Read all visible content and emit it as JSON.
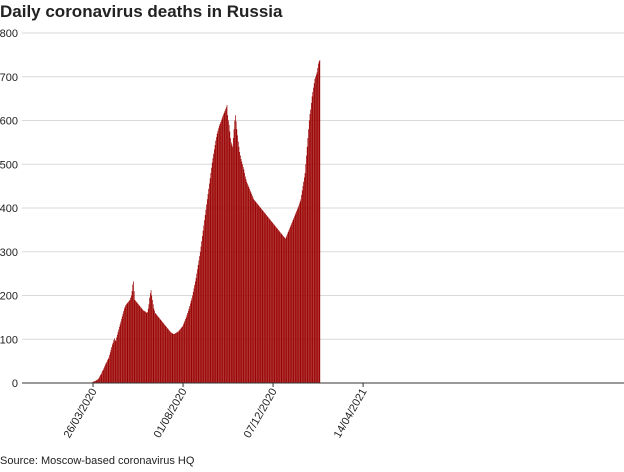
{
  "title": "Daily coronavirus deaths in Russia",
  "source": "Source: Moscow-based coronavirus HQ",
  "chart_data": {
    "type": "bar",
    "title": "Daily coronavirus deaths in Russia",
    "xlabel": "",
    "ylabel": "",
    "ylim": [
      0,
      800
    ],
    "yticks": [
      0,
      100,
      200,
      300,
      400,
      500,
      600,
      700,
      800
    ],
    "x_tick_labels": [
      "26/03/2020",
      "01/08/2020",
      "07/12/2020",
      "14/04/2021"
    ],
    "x_tick_dates": [
      "2020-03-26",
      "2020-08-01",
      "2020-12-07",
      "2021-04-14"
    ],
    "x_range": [
      "2019-12-16",
      "2022-04-20"
    ],
    "grid": true,
    "bar_color": "#990000",
    "series": [
      {
        "start_date": "2020-03-19",
        "values": [
          0,
          0,
          0,
          0,
          0,
          1,
          2,
          3,
          4,
          4,
          5,
          6,
          7,
          8,
          9,
          12,
          15,
          18,
          20,
          24,
          28,
          30,
          34,
          38,
          42,
          45,
          48,
          52,
          55,
          58,
          64,
          70,
          76,
          82,
          88,
          92,
          98,
          102,
          98,
          96,
          104,
          110,
          116,
          122,
          128,
          134,
          140,
          146,
          152,
          158,
          164,
          170,
          174,
          178,
          180,
          182,
          184,
          186,
          188,
          190,
          195,
          200,
          210,
          225,
          232,
          210,
          190,
          188,
          186,
          184,
          182,
          180,
          178,
          176,
          174,
          172,
          170,
          168,
          166,
          165,
          164,
          163,
          162,
          160,
          162,
          170,
          180,
          195,
          205,
          212,
          200,
          190,
          180,
          170,
          165,
          160,
          158,
          156,
          154,
          152,
          150,
          148,
          146,
          144,
          142,
          140,
          138,
          136,
          134,
          132,
          130,
          128,
          126,
          124,
          122,
          120,
          118,
          116,
          115,
          114,
          113,
          112,
          112,
          113,
          114,
          115,
          116,
          117,
          118,
          120,
          122,
          124,
          126,
          128,
          130,
          134,
          138,
          142,
          146,
          150,
          155,
          160,
          165,
          170,
          176,
          182,
          188,
          194,
          200,
          208,
          216,
          224,
          232,
          240,
          250,
          260,
          270,
          280,
          290,
          300,
          312,
          324,
          336,
          348,
          360,
          372,
          384,
          396,
          408,
          420,
          432,
          444,
          456,
          468,
          480,
          492,
          504,
          514,
          524,
          534,
          544,
          554,
          562,
          570,
          576,
          582,
          588,
          592,
          596,
          600,
          605,
          610,
          614,
          618,
          622,
          626,
          630,
          635,
          612,
          600,
          590,
          575,
          560,
          550,
          545,
          540,
          560,
          580,
          600,
          612,
          598,
          580,
          566,
          552,
          540,
          528,
          520,
          512,
          506,
          500,
          494,
          488,
          480,
          472,
          466,
          460,
          456,
          452,
          448,
          444,
          440,
          436,
          432,
          428,
          424,
          420,
          418,
          416,
          414,
          412,
          410,
          408,
          406,
          404,
          402,
          400,
          398,
          396,
          394,
          392,
          390,
          388,
          386,
          384,
          382,
          380,
          378,
          376,
          374,
          372,
          370,
          368,
          366,
          364,
          362,
          360,
          358,
          356,
          354,
          352,
          350,
          348,
          346,
          344,
          342,
          340,
          338,
          336,
          334,
          332,
          330,
          333,
          337,
          341,
          345,
          349,
          353,
          357,
          361,
          365,
          369,
          373,
          377,
          381,
          385,
          389,
          393,
          397,
          401,
          405,
          410,
          415,
          420,
          430,
          440,
          450,
          460,
          470,
          480,
          500,
          520,
          540,
          560,
          580,
          600,
          615,
          625,
          640,
          655,
          665,
          675,
          685,
          695,
          700,
          705,
          710,
          720,
          730,
          735,
          738
        ]
      }
    ]
  }
}
